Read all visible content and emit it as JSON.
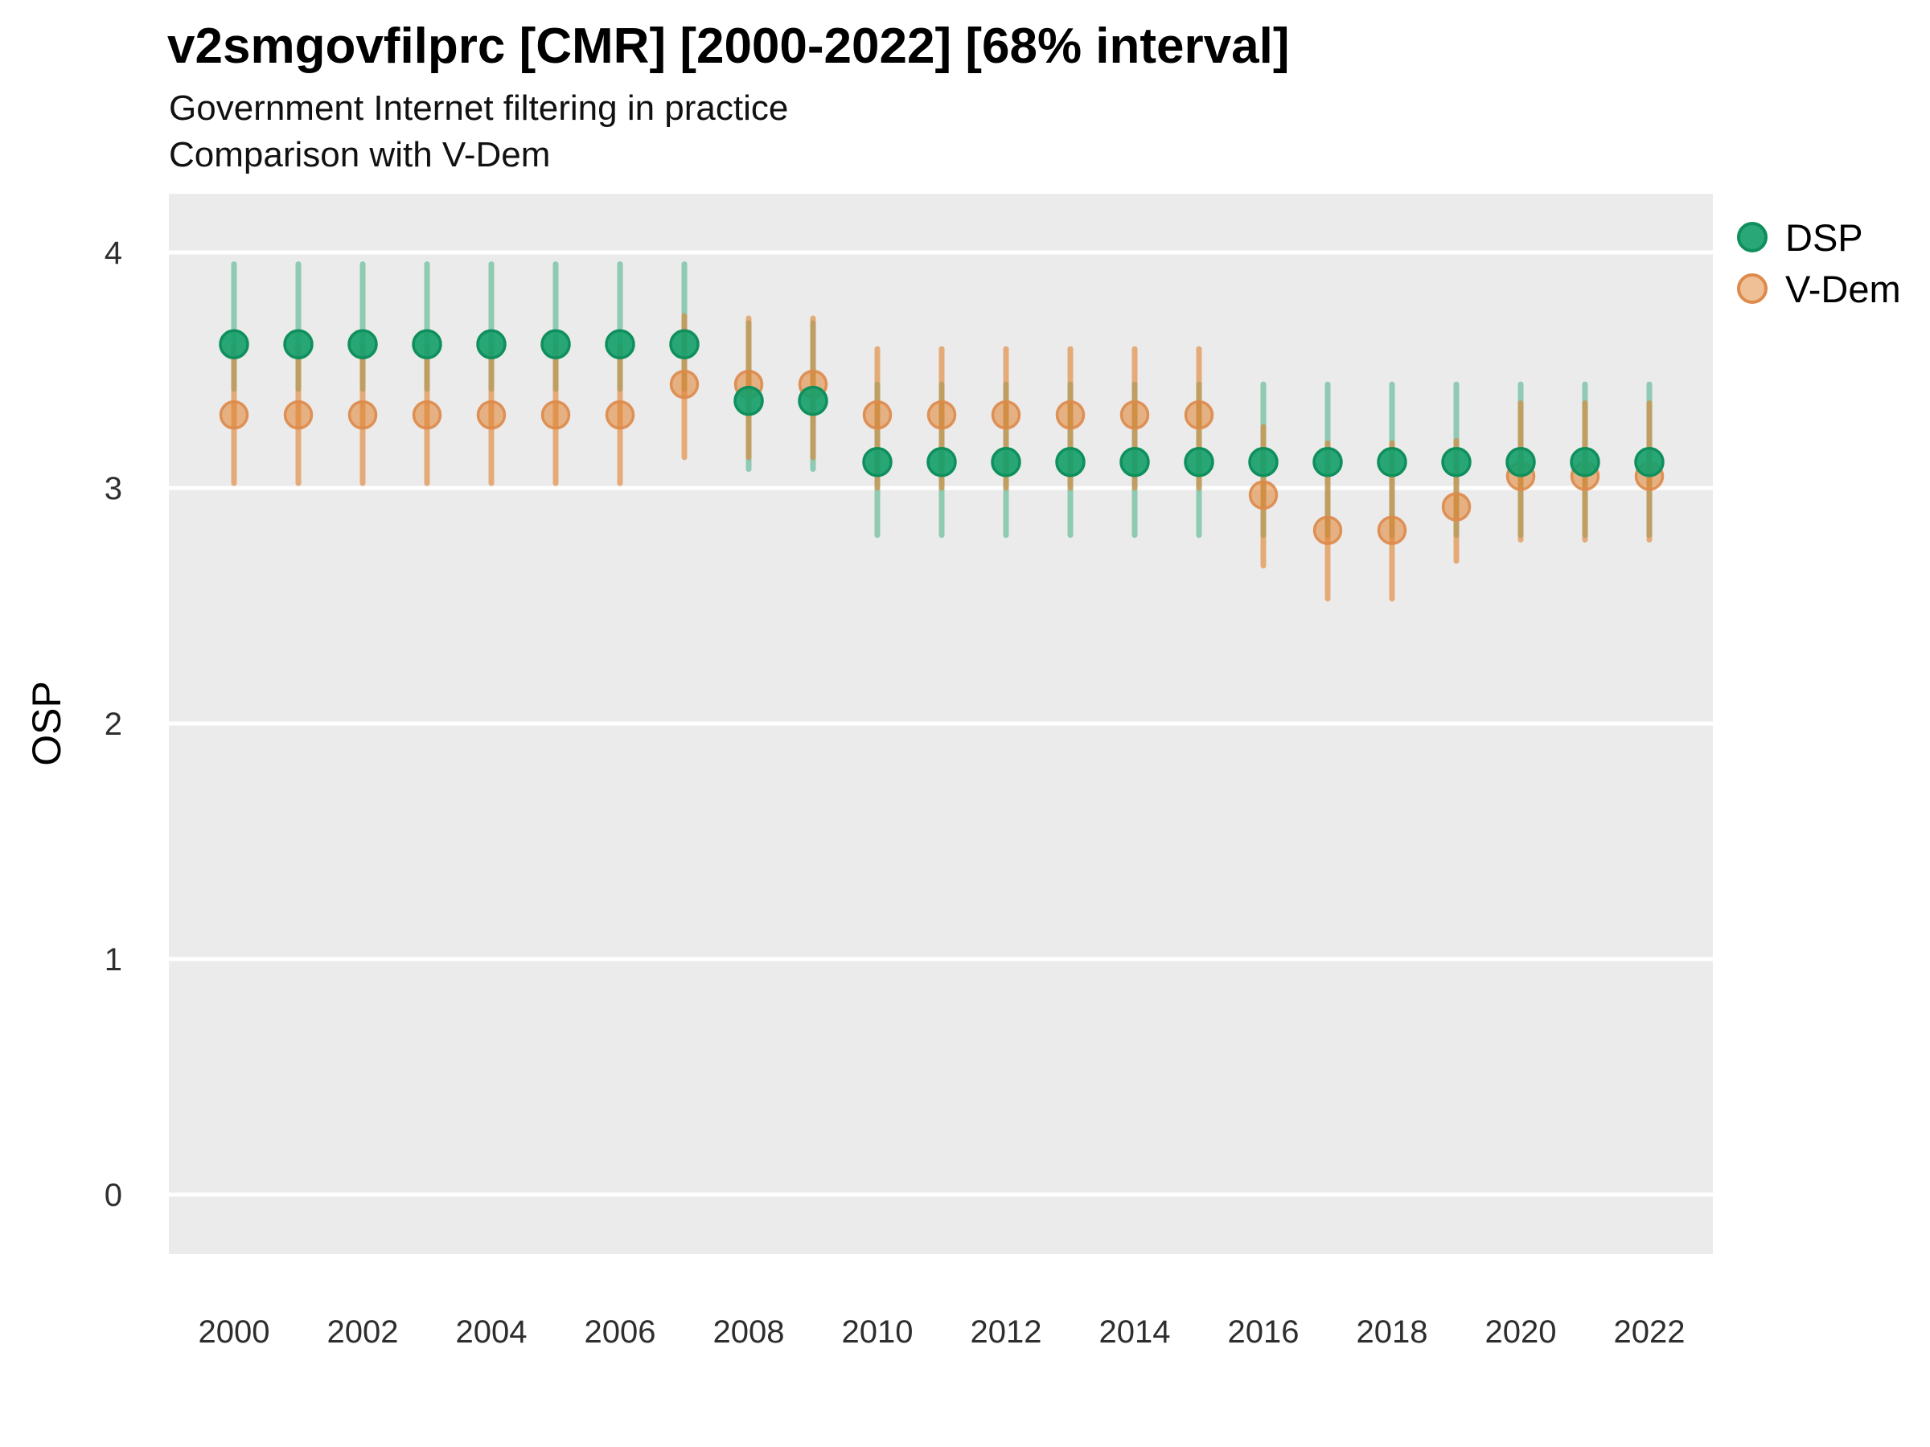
{
  "header": {
    "title": "v2smgovfilprc [CMR] [2000-2022] [68% interval]",
    "subtitle1": "Government Internet filtering in practice",
    "subtitle2": "Comparison with V-Dem"
  },
  "chart_data": {
    "type": "scatter",
    "title": "v2smgovfilprc [CMR] [2000-2022] [68% interval]",
    "subtitle": [
      "Government Internet filtering in practice",
      "Comparison with V-Dem"
    ],
    "ylabel": "OSP",
    "xlabel": "",
    "interval_note": "68% interval",
    "x": [
      2000,
      2001,
      2002,
      2003,
      2004,
      2005,
      2006,
      2007,
      2008,
      2009,
      2010,
      2011,
      2012,
      2013,
      2014,
      2015,
      2016,
      2017,
      2018,
      2019,
      2020,
      2021,
      2022
    ],
    "xticks": [
      2000,
      2002,
      2004,
      2006,
      2008,
      2010,
      2012,
      2014,
      2016,
      2018,
      2020,
      2022
    ],
    "yticks": [
      0,
      1,
      2,
      3,
      4
    ],
    "ylim": [
      -0.25,
      4.25
    ],
    "grid": "horizontal-major-only",
    "legend_position": "right-top",
    "colors": {
      "panel": "#ebebeb",
      "grid": "#ffffff",
      "dsp_fill": "#17a06b",
      "dsp_stroke": "#0f8f5c",
      "vdem_fill": "#e0812e",
      "vdem_stroke": "#dd8a4a"
    },
    "series": [
      {
        "name": "DSP",
        "color": "#17a06b",
        "stroke": "#0f8f5c",
        "values": [
          3.61,
          3.61,
          3.61,
          3.61,
          3.61,
          3.61,
          3.61,
          3.61,
          3.37,
          3.37,
          3.11,
          3.11,
          3.11,
          3.11,
          3.11,
          3.11,
          3.11,
          3.11,
          3.11,
          3.11,
          3.11,
          3.11,
          3.11
        ],
        "lower": [
          3.42,
          3.42,
          3.42,
          3.42,
          3.42,
          3.42,
          3.42,
          3.42,
          3.08,
          3.08,
          2.8,
          2.8,
          2.8,
          2.8,
          2.8,
          2.8,
          2.8,
          2.8,
          2.8,
          2.8,
          2.8,
          2.8,
          2.8
        ],
        "upper": [
          3.95,
          3.95,
          3.95,
          3.95,
          3.95,
          3.95,
          3.95,
          3.95,
          3.7,
          3.7,
          3.44,
          3.44,
          3.44,
          3.44,
          3.44,
          3.44,
          3.44,
          3.44,
          3.44,
          3.44,
          3.44,
          3.44,
          3.44
        ]
      },
      {
        "name": "V-Dem",
        "color": "#e0812e",
        "stroke": "#dd8a4a",
        "values": [
          3.31,
          3.31,
          3.31,
          3.31,
          3.31,
          3.31,
          3.31,
          3.44,
          3.44,
          3.44,
          3.31,
          3.31,
          3.31,
          3.31,
          3.31,
          3.31,
          2.97,
          2.82,
          2.82,
          2.92,
          3.05,
          3.05,
          3.05
        ],
        "lower": [
          3.02,
          3.02,
          3.02,
          3.02,
          3.02,
          3.02,
          3.02,
          3.13,
          3.13,
          3.13,
          3.0,
          3.0,
          3.0,
          3.0,
          3.0,
          3.0,
          2.67,
          2.53,
          2.53,
          2.69,
          2.78,
          2.78,
          2.78
        ],
        "upper": [
          3.6,
          3.6,
          3.6,
          3.6,
          3.6,
          3.6,
          3.6,
          3.73,
          3.72,
          3.72,
          3.59,
          3.59,
          3.59,
          3.59,
          3.59,
          3.59,
          3.26,
          3.19,
          3.19,
          3.2,
          3.36,
          3.36,
          3.36
        ]
      }
    ]
  }
}
